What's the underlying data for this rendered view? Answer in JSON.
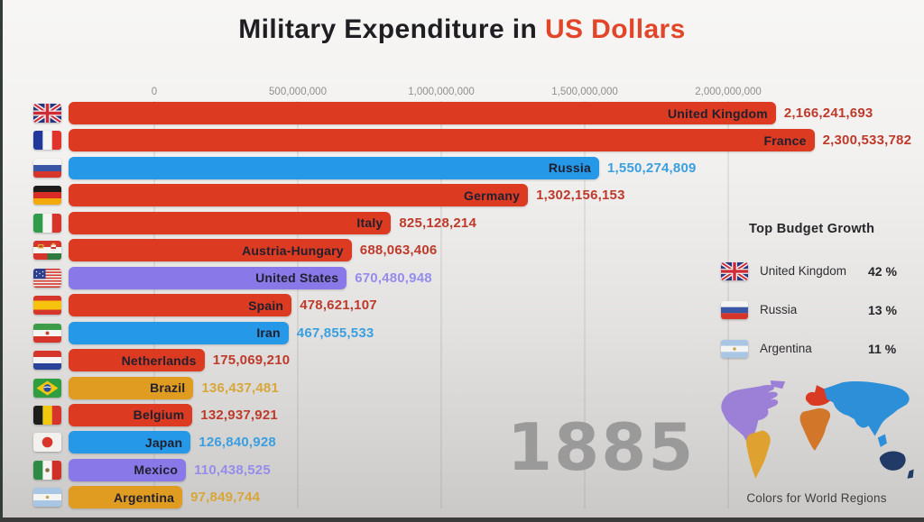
{
  "title": {
    "prefix": "Military Expenditure in ",
    "highlight": "US Dollars"
  },
  "year": "1885",
  "axis": {
    "ticks": [
      "0",
      "500,000,000",
      "1,000,000,000",
      "1,500,000,000",
      "2,000,000,000"
    ]
  },
  "colors": {
    "europe": {
      "bar": "#dc3b22",
      "text": "#be3a2b"
    },
    "asia": {
      "bar": "#2598e8",
      "text": "#3a9fe0"
    },
    "north-america": {
      "bar": "#8979e8",
      "text": "#958cec"
    },
    "south-america": {
      "bar": "#df9c20",
      "text": "#d8a639"
    }
  },
  "chart_data": {
    "type": "bar",
    "orientation": "horizontal",
    "title": "Military Expenditure in US Dollars",
    "year_annotation": "1885",
    "xlim": [
      0,
      2300533782
    ],
    "x_ticks": [
      0,
      500000000,
      1000000000,
      1500000000,
      2000000000
    ],
    "grid": true,
    "bars": [
      {
        "country": "United Kingdom",
        "value": 2166241693,
        "value_label": "2,166,241,693",
        "region": "europe",
        "flag": "gb"
      },
      {
        "country": "France",
        "value": 2300533782,
        "value_label": "2,300,533,782",
        "region": "europe",
        "flag": "fr"
      },
      {
        "country": "Russia",
        "value": 1550274809,
        "value_label": "1,550,274,809",
        "region": "asia",
        "flag": "ru"
      },
      {
        "country": "Germany",
        "value": 1302156153,
        "value_label": "1,302,156,153",
        "region": "europe",
        "flag": "de"
      },
      {
        "country": "Italy",
        "value": 825128214,
        "value_label": "825,128,214",
        "region": "europe",
        "flag": "it"
      },
      {
        "country": "Austria-Hungary",
        "value": 688063406,
        "value_label": "688,063,406",
        "region": "europe",
        "flag": "at-hu"
      },
      {
        "country": "United States",
        "value": 670480948,
        "value_label": "670,480,948",
        "region": "north-america",
        "flag": "us"
      },
      {
        "country": "Spain",
        "value": 478621107,
        "value_label": "478,621,107",
        "region": "europe",
        "flag": "es"
      },
      {
        "country": "Iran",
        "value": 467855533,
        "value_label": "467,855,533",
        "region": "asia",
        "flag": "ir"
      },
      {
        "country": "Netherlands",
        "value": 175069210,
        "value_label": "175,069,210",
        "region": "europe",
        "flag": "nl"
      },
      {
        "country": "Brazil",
        "value": 136437481,
        "value_label": "136,437,481",
        "region": "south-america",
        "flag": "br"
      },
      {
        "country": "Belgium",
        "value": 132937921,
        "value_label": "132,937,921",
        "region": "europe",
        "flag": "be"
      },
      {
        "country": "Japan",
        "value": 126840928,
        "value_label": "126,840,928",
        "region": "asia",
        "flag": "jp"
      },
      {
        "country": "Mexico",
        "value": 110438525,
        "value_label": "110,438,525",
        "region": "north-america",
        "flag": "mx"
      },
      {
        "country": "Argentina",
        "value": 97849744,
        "value_label": "97,849,744",
        "region": "south-america",
        "flag": "ar"
      }
    ]
  },
  "growth_panel": {
    "heading": "Top Budget Growth",
    "rows": [
      {
        "country": "United Kingdom",
        "percent": "42 %",
        "flag": "gb"
      },
      {
        "country": "Russia",
        "percent": "13 %",
        "flag": "ru"
      },
      {
        "country": "Argentina",
        "percent": "11 %",
        "flag": "ar"
      }
    ]
  },
  "map": {
    "caption": "Colors for World Regions",
    "region_colors": {
      "north-america": "#9c80d8",
      "south-america": "#dfa230",
      "europe": "#d93a23",
      "africa": "#d2762a",
      "asia": "#2e8fd9",
      "oceania": "#223a66"
    }
  }
}
